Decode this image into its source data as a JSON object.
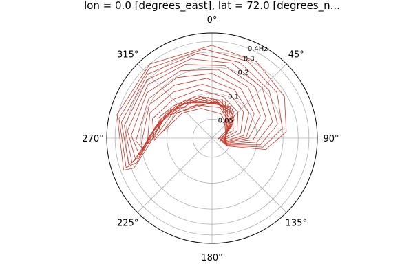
{
  "chart_data": {
    "type": "contour",
    "title": "lon = 0.0 [degrees_east], lat = 72.0 [degrees_n...",
    "projection": "polar",
    "theta_zero": "N",
    "theta_direction": "clockwise",
    "angle_ticks": [
      "0°",
      "45°",
      "90°",
      "135°",
      "180°",
      "225°",
      "270°",
      "315°"
    ],
    "radial_ticks": [
      {
        "value": 0.05,
        "label": "0.05"
      },
      {
        "value": 0.1,
        "label": "0.1"
      },
      {
        "value": 0.2,
        "label": "0.2"
      },
      {
        "value": 0.3,
        "label": "0.3"
      },
      {
        "value": 0.4,
        "label": "0.4Hz"
      }
    ],
    "radial_scale": "log",
    "rlim": [
      0.03,
      0.5
    ],
    "grid": true,
    "contour_color": "#c0392b",
    "contours": [
      [
        [
          100,
          0.035
        ],
        [
          70,
          0.055
        ],
        [
          40,
          0.07
        ],
        [
          10,
          0.085
        ],
        [
          -20,
          0.1
        ],
        [
          -50,
          0.115
        ],
        [
          -70,
          0.14
        ],
        [
          -85,
          0.12
        ],
        [
          -75,
          0.1
        ],
        [
          -50,
          0.085
        ],
        [
          -20,
          0.07
        ],
        [
          20,
          0.06
        ],
        [
          60,
          0.05
        ],
        [
          100,
          0.035
        ]
      ],
      [
        [
          105,
          0.037
        ],
        [
          75,
          0.06
        ],
        [
          45,
          0.08
        ],
        [
          15,
          0.095
        ],
        [
          -15,
          0.115
        ],
        [
          -45,
          0.13
        ],
        [
          -72,
          0.16
        ],
        [
          -92,
          0.14
        ],
        [
          -80,
          0.11
        ],
        [
          -55,
          0.095
        ],
        [
          -25,
          0.08
        ],
        [
          15,
          0.07
        ],
        [
          60,
          0.055
        ],
        [
          105,
          0.037
        ]
      ],
      [
        [
          108,
          0.038
        ],
        [
          80,
          0.065
        ],
        [
          50,
          0.09
        ],
        [
          20,
          0.11
        ],
        [
          -10,
          0.13
        ],
        [
          -40,
          0.15
        ],
        [
          -68,
          0.18
        ],
        [
          -95,
          0.17
        ],
        [
          -86,
          0.13
        ],
        [
          -60,
          0.105
        ],
        [
          -30,
          0.09
        ],
        [
          10,
          0.078
        ],
        [
          55,
          0.06
        ],
        [
          108,
          0.038
        ]
      ],
      [
        [
          110,
          0.04
        ],
        [
          85,
          0.07
        ],
        [
          55,
          0.1
        ],
        [
          25,
          0.125
        ],
        [
          -5,
          0.15
        ],
        [
          -35,
          0.17
        ],
        [
          -62,
          0.2
        ],
        [
          -95,
          0.2
        ],
        [
          -95,
          0.16
        ],
        [
          -70,
          0.12
        ],
        [
          -40,
          0.1
        ],
        [
          5,
          0.085
        ],
        [
          50,
          0.065
        ],
        [
          110,
          0.04
        ]
      ],
      [
        [
          112,
          0.041
        ],
        [
          88,
          0.075
        ],
        [
          60,
          0.11
        ],
        [
          30,
          0.14
        ],
        [
          0,
          0.17
        ],
        [
          -30,
          0.195
        ],
        [
          -58,
          0.22
        ],
        [
          -92,
          0.23
        ],
        [
          -100,
          0.19
        ],
        [
          -80,
          0.14
        ],
        [
          -50,
          0.11
        ],
        [
          -5,
          0.09
        ],
        [
          45,
          0.07
        ],
        [
          112,
          0.041
        ]
      ],
      [
        [
          113,
          0.042
        ],
        [
          90,
          0.08
        ],
        [
          65,
          0.125
        ],
        [
          35,
          0.16
        ],
        [
          5,
          0.19
        ],
        [
          -25,
          0.22
        ],
        [
          -55,
          0.25
        ],
        [
          -88,
          0.26
        ],
        [
          -103,
          0.22
        ],
        [
          -88,
          0.16
        ],
        [
          -60,
          0.12
        ],
        [
          -15,
          0.095
        ],
        [
          40,
          0.075
        ],
        [
          113,
          0.042
        ]
      ],
      [
        [
          114,
          0.043
        ],
        [
          92,
          0.09
        ],
        [
          70,
          0.14
        ],
        [
          40,
          0.18
        ],
        [
          10,
          0.215
        ],
        [
          -20,
          0.245
        ],
        [
          -50,
          0.28
        ],
        [
          -85,
          0.29
        ],
        [
          -105,
          0.25
        ],
        [
          -95,
          0.18
        ],
        [
          -70,
          0.13
        ],
        [
          -25,
          0.1
        ],
        [
          35,
          0.078
        ],
        [
          114,
          0.043
        ]
      ],
      [
        [
          115,
          0.044
        ],
        [
          95,
          0.1
        ],
        [
          75,
          0.16
        ],
        [
          45,
          0.2
        ],
        [
          15,
          0.24
        ],
        [
          -15,
          0.27
        ],
        [
          -48,
          0.31
        ],
        [
          -82,
          0.32
        ],
        [
          -107,
          0.28
        ],
        [
          -100,
          0.2
        ],
        [
          -78,
          0.14
        ],
        [
          -35,
          0.105
        ],
        [
          30,
          0.08
        ],
        [
          115,
          0.044
        ]
      ],
      [
        [
          116,
          0.045
        ],
        [
          98,
          0.11
        ],
        [
          78,
          0.18
        ],
        [
          50,
          0.22
        ],
        [
          20,
          0.26
        ],
        [
          -10,
          0.3
        ],
        [
          -45,
          0.34
        ],
        [
          -80,
          0.35
        ],
        [
          -108,
          0.31
        ],
        [
          -104,
          0.22
        ],
        [
          -85,
          0.15
        ],
        [
          -45,
          0.11
        ],
        [
          25,
          0.082
        ],
        [
          116,
          0.045
        ]
      ],
      [
        [
          117,
          0.046
        ],
        [
          100,
          0.12
        ],
        [
          82,
          0.2
        ],
        [
          55,
          0.25
        ],
        [
          25,
          0.29
        ],
        [
          -5,
          0.33
        ],
        [
          -42,
          0.37
        ],
        [
          -78,
          0.38
        ],
        [
          -109,
          0.34
        ],
        [
          -108,
          0.25
        ],
        [
          -92,
          0.16
        ],
        [
          -55,
          0.115
        ],
        [
          20,
          0.085
        ],
        [
          117,
          0.046
        ]
      ],
      [
        [
          118,
          0.047
        ],
        [
          102,
          0.13
        ],
        [
          85,
          0.22
        ],
        [
          60,
          0.28
        ],
        [
          30,
          0.32
        ],
        [
          0,
          0.36
        ],
        [
          -40,
          0.4
        ],
        [
          -76,
          0.41
        ],
        [
          -110,
          0.37
        ],
        [
          -111,
          0.28
        ],
        [
          -98,
          0.17
        ],
        [
          -65,
          0.12
        ],
        [
          15,
          0.088
        ],
        [
          118,
          0.047
        ]
      ]
    ]
  }
}
